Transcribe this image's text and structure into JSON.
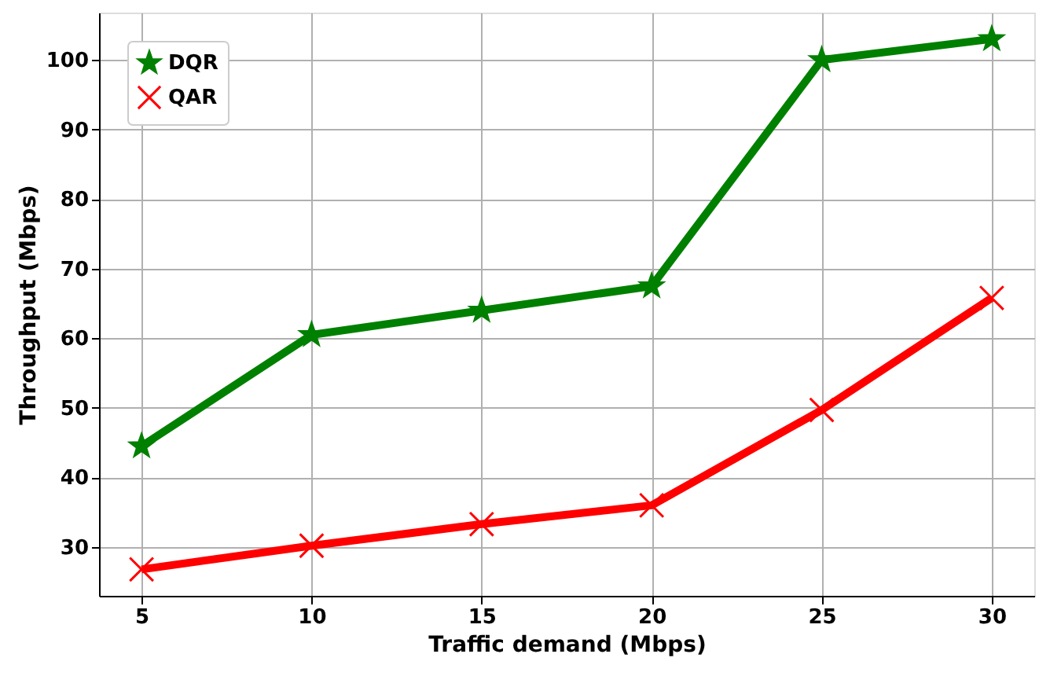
{
  "chart_data": {
    "type": "line",
    "xlabel": "Traffic demand (Mbps)",
    "ylabel": "Throughput (Mbps)",
    "x": [
      5,
      10,
      15,
      20,
      25,
      30
    ],
    "series": [
      {
        "name": "DQR",
        "color": "#008000",
        "marker": "star",
        "values": [
          44.5,
          60.5,
          64,
          67.5,
          100,
          103
        ]
      },
      {
        "name": "QAR",
        "color": "#ff0000",
        "marker": "cross",
        "values": [
          26.8,
          30.2,
          33.3,
          36,
          49.7,
          65.8
        ]
      }
    ],
    "xlim": [
      3.75,
      31.25
    ],
    "xticks": [
      5,
      10,
      15,
      20,
      25,
      30
    ],
    "ylim": [
      23,
      106.8
    ],
    "yticks": [
      30,
      40,
      50,
      60,
      70,
      80,
      90,
      100
    ],
    "grid": true,
    "legend": "top left",
    "line_style": "solid"
  }
}
